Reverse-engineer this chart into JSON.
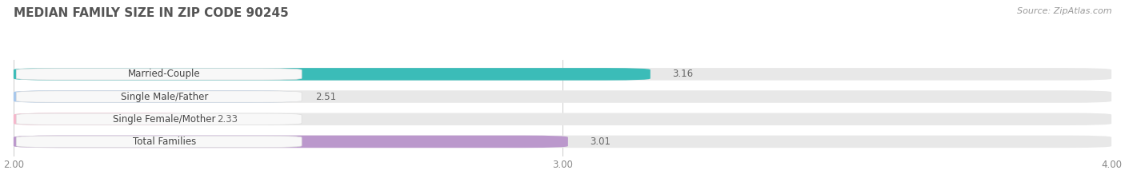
{
  "title": "MEDIAN FAMILY SIZE IN ZIP CODE 90245",
  "source": "Source: ZipAtlas.com",
  "categories": [
    "Married-Couple",
    "Single Male/Father",
    "Single Female/Mother",
    "Total Families"
  ],
  "values": [
    3.16,
    2.51,
    2.33,
    3.01
  ],
  "bar_colors": [
    "#3bbcb8",
    "#a8c8ec",
    "#f5b8cc",
    "#bb98cc"
  ],
  "bar_bg_color": "#e8e8e8",
  "label_bg_color": "#f5f5f5",
  "xlim": [
    2.0,
    4.0
  ],
  "xticks": [
    2.0,
    3.0,
    4.0
  ],
  "xtick_labels": [
    "2.00",
    "3.00",
    "4.00"
  ],
  "background_color": "#ffffff",
  "title_fontsize": 11,
  "label_fontsize": 8.5,
  "value_fontsize": 8.5,
  "source_fontsize": 8,
  "bar_height": 0.55,
  "grid_color": "#cccccc",
  "label_text_color": "#444444",
  "value_text_color": "#666666",
  "title_color": "#555555"
}
